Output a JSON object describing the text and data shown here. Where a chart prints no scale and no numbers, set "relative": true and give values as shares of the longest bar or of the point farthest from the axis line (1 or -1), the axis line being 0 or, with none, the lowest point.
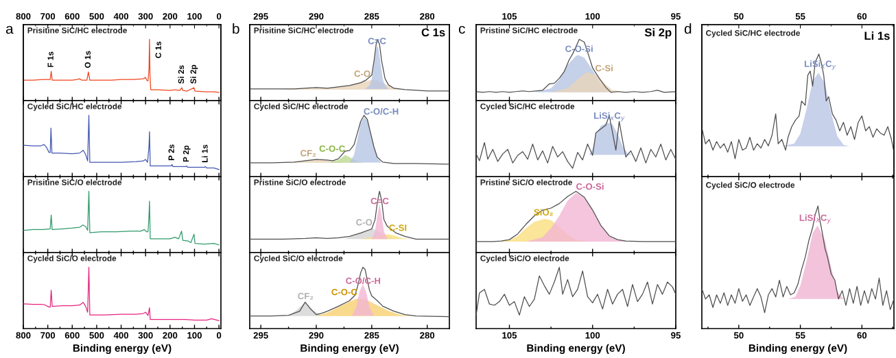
{
  "chart_data": [
    {
      "type": "line",
      "relative": true,
      "title": "Prisitine SiC/HC electrode",
      "xlim": [
        800,
        -8
      ],
      "xticks": [
        800,
        700,
        600,
        500,
        400,
        300,
        200,
        100,
        0
      ],
      "x2lim": [
        800,
        -8
      ],
      "x2ticks": [
        800,
        700,
        600,
        500,
        400,
        300,
        200,
        100,
        0
      ],
      "tick_labels": false,
      "annotations": [
        "a",
        {
          "text": "F 1s",
          "x": 686,
          "y": 0.478
        },
        {
          "text": "O 1s",
          "x": 534,
          "y": 0.467
        },
        {
          "text": "C 1s",
          "x": 284,
          "y": 1
        },
        {
          "text": "Si 2s",
          "x": 152,
          "y": 0.211
        },
        {
          "text": "Si 2p",
          "x": 102,
          "y": 0.211
        }
      ],
      "series": [
        {
          "color": "#f0441c",
          "x": [
            800,
            760,
            720,
            700,
            690,
            686,
            682,
            650,
            600,
            580,
            570,
            560,
            540,
            534,
            528,
            500,
            440,
            400,
            350,
            310,
            300,
            295,
            290,
            286,
            284,
            282,
            279,
            250,
            200,
            180,
            160,
            152,
            148,
            130,
            102,
            98,
            50,
            20,
            0
          ],
          "values": [
            0.333,
            0.333,
            0.344,
            0.344,
            0.344,
            0.478,
            0.333,
            0.333,
            0.333,
            0.344,
            0.356,
            0.333,
            0.333,
            0.467,
            0.333,
            0.333,
            0.333,
            0.344,
            0.344,
            0.356,
            0.378,
            0.333,
            0.322,
            0.522,
            1,
            0.411,
            0.178,
            0.178,
            0.167,
            0.178,
            0.167,
            0.211,
            0.167,
            0.156,
            0.211,
            0.156,
            0.144,
            0.144,
            0.133
          ]
        }
      ]
    },
    {
      "type": "line",
      "relative": true,
      "title": "Cycled SiC/HC electrode",
      "xlim": [
        800,
        -8
      ],
      "xticks": [
        800,
        700,
        600,
        500,
        400,
        300,
        200,
        100,
        0
      ],
      "tick_labels": false,
      "annotations": [
        {
          "text": "P 2s",
          "x": 192,
          "y": 0.198
        },
        {
          "text": "P 2p",
          "x": 132,
          "y": 0.174
        },
        {
          "text": "Li 1s",
          "x": 55,
          "y": 0.163
        }
      ],
      "series": [
        {
          "color": "#4257b2",
          "x": [
            800,
            760,
            730,
            715,
            705,
            695,
            690,
            687,
            683,
            650,
            600,
            570,
            555,
            545,
            537,
            532,
            528,
            500,
            400,
            340,
            310,
            300,
            292,
            286,
            284,
            281,
            250,
            195,
            192,
            188,
            135,
            132,
            128,
            60,
            55,
            50,
            20,
            0
          ],
          "values": [
            0.512,
            0.5,
            0.5,
            0.523,
            0.477,
            0.395,
            0.395,
            0.791,
            0.384,
            0.384,
            0.372,
            0.384,
            0.43,
            0.36,
            0.256,
            1,
            0.233,
            0.233,
            0.233,
            0.244,
            0.256,
            0.279,
            0.233,
            0.5,
            0.733,
            0.174,
            0.174,
            0.174,
            0.198,
            0.163,
            0.163,
            0.174,
            0.151,
            0.151,
            0.163,
            0.14,
            0.14,
            0.116
          ]
        }
      ]
    },
    {
      "type": "line",
      "relative": true,
      "title": "Prisitine SiC/O electrode",
      "xlim": [
        800,
        -8
      ],
      "xticks": [
        800,
        700,
        600,
        500,
        400,
        300,
        200,
        100,
        0
      ],
      "tick_labels": false,
      "series": [
        {
          "color": "#2e9a6b",
          "x": [
            800,
            760,
            720,
            690,
            686,
            682,
            640,
            600,
            570,
            556,
            545,
            537,
            532,
            528,
            480,
            420,
            360,
            320,
            305,
            295,
            290,
            286,
            284,
            281,
            240,
            200,
            180,
            165,
            153,
            148,
            125,
            115,
            102,
            98,
            60,
            20,
            0
          ],
          "values": [
            0.363,
            0.375,
            0.375,
            0.388,
            0.613,
            0.375,
            0.388,
            0.4,
            0.413,
            0.45,
            0.425,
            0.363,
            1,
            0.325,
            0.338,
            0.338,
            0.35,
            0.35,
            0.375,
            0.338,
            0.338,
            0.613,
            0.838,
            0.225,
            0.225,
            0.225,
            0.25,
            0.225,
            0.35,
            0.2,
            0.188,
            0.163,
            0.3,
            0.15,
            0.138,
            0.15,
            0.125
          ]
        }
      ]
    },
    {
      "type": "line",
      "relative": true,
      "title": "Cycled SiC/O electrode",
      "xlim": [
        800,
        -8
      ],
      "xticks": [
        800,
        700,
        600,
        500,
        400,
        300,
        200,
        100,
        0
      ],
      "tick_labels": "x",
      "xlabel": "Binding energy (eV)",
      "series": [
        {
          "color": "#e4237f",
          "x": [
            800,
            760,
            720,
            710,
            695,
            690,
            686,
            682,
            640,
            600,
            570,
            555,
            545,
            537,
            532,
            528,
            470,
            400,
            340,
            310,
            300,
            290,
            286,
            284,
            281,
            240,
            200,
            140,
            100,
            50,
            30,
            0
          ],
          "values": [
            0.404,
            0.394,
            0.394,
            0.383,
            0.351,
            0.351,
            0.628,
            0.362,
            0.372,
            0.372,
            0.383,
            0.426,
            0.362,
            0.266,
            1,
            0.223,
            0.223,
            0.234,
            0.234,
            0.245,
            0.266,
            0.213,
            0.298,
            0.34,
            0.149,
            0.149,
            0.149,
            0.149,
            0.138,
            0.138,
            0.16,
            0.128
          ]
        }
      ]
    },
    {
      "type": "line",
      "relative": true,
      "title": "Prisitine SiC/HC electrode",
      "subtitle": "C 1s",
      "xlim": [
        296,
        278
      ],
      "xticks": [
        295,
        290,
        285,
        280
      ],
      "x2lim": [
        296,
        278
      ],
      "x2ticks": [
        295,
        290,
        285,
        280
      ],
      "tick_labels": false,
      "annotations": [
        "b"
      ],
      "series": [
        {
          "type": "area",
          "name": "C-O",
          "color": "#e9d5b9",
          "x": [
            293,
            290,
            288,
            287,
            286,
            285,
            284.5,
            284,
            283.5,
            283,
            282
          ],
          "values": [
            0.191,
            0.2,
            0.22,
            0.25,
            0.3,
            0.337,
            0.33,
            0.29,
            0.24,
            0.2,
            0.18
          ]
        },
        {
          "type": "area",
          "name": "C=C",
          "color": "#b7c4e4",
          "x": [
            285.6,
            285.2,
            285,
            284.8,
            284.6,
            284.5,
            284.4,
            284.2,
            284,
            283.8,
            283.5
          ],
          "values": [
            0.19,
            0.25,
            0.35,
            0.6,
            0.85,
            0.888,
            0.85,
            0.6,
            0.35,
            0.25,
            0.19
          ]
        },
        {
          "color": "#4d4d4d",
          "x": [
            296,
            294,
            292,
            291,
            290,
            289,
            288,
            287,
            286,
            285.5,
            285,
            284.8,
            284.6,
            284.5,
            284.3,
            284.1,
            283.8,
            283.5,
            283,
            282,
            281,
            280,
            278
          ],
          "values": [
            0.191,
            0.191,
            0.191,
            0.202,
            0.213,
            0.202,
            0.225,
            0.247,
            0.292,
            0.337,
            0.416,
            0.64,
            0.921,
            1,
            0.921,
            0.64,
            0.36,
            0.258,
            0.202,
            0.18,
            0.169,
            0.157,
            0.157
          ]
        }
      ]
    },
    {
      "type": "line",
      "relative": true,
      "title": "Cycled SiC/HC electrode",
      "xlim": [
        296,
        278
      ],
      "xticks": [
        295,
        290,
        285,
        280
      ],
      "tick_labels": false,
      "series": [
        {
          "type": "area",
          "name": "CF₂",
          "color": "#e9d5b9",
          "x": [
            293,
            291.5,
            290,
            288.5,
            287.5,
            286.5
          ],
          "values": [
            0.225,
            0.25,
            0.277,
            0.25,
            0.23,
            0.225
          ]
        },
        {
          "type": "area",
          "name": "C-O-C",
          "color": "#bcd98f",
          "x": [
            292,
            288.8,
            288,
            287.4,
            286.8,
            286.2,
            285.8
          ],
          "values": [
            0.225,
            0.23,
            0.27,
            0.352,
            0.3,
            0.24,
            0.225
          ]
        },
        {
          "type": "area",
          "name": "C-O/C-H",
          "color": "#b7c4e4",
          "x": [
            287,
            286.6,
            286.3,
            286,
            285.7,
            285.4,
            285.1,
            284.8,
            284.5,
            284.1
          ],
          "values": [
            0.23,
            0.35,
            0.6,
            0.87,
            0.97,
            0.92,
            0.72,
            0.48,
            0.3,
            0.23
          ]
        },
        {
          "color": "#4d4d4d",
          "x": [
            296,
            294,
            292,
            291,
            290,
            289,
            288.5,
            288,
            287.4,
            287,
            286.6,
            286.3,
            286,
            285.7,
            285.4,
            285.1,
            284.8,
            284.5,
            284,
            283,
            281,
            278
          ],
          "values": [
            0.225,
            0.225,
            0.236,
            0.258,
            0.281,
            0.27,
            0.258,
            0.292,
            0.416,
            0.427,
            0.517,
            0.708,
            0.899,
            1,
            0.933,
            0.708,
            0.483,
            0.315,
            0.236,
            0.213,
            0.213,
            0.202
          ]
        }
      ]
    },
    {
      "type": "line",
      "relative": true,
      "title": "Pristine SiC/O electrode",
      "xlim": [
        296,
        278
      ],
      "xticks": [
        295,
        290,
        285,
        280
      ],
      "tick_labels": false,
      "series": [
        {
          "type": "area",
          "name": "C-O",
          "color": "#d3d3d3",
          "x": [
            287.5,
            286.5,
            285.5,
            285,
            284.5,
            284,
            283,
            282.5
          ],
          "values": [
            0.22,
            0.28,
            0.37,
            0.392,
            0.36,
            0.3,
            0.23,
            0.22
          ]
        },
        {
          "type": "area",
          "name": "C-SI",
          "color": "#f9df7e",
          "x": [
            286,
            285,
            284,
            283.5,
            283,
            282.3,
            281.5
          ],
          "values": [
            0.22,
            0.25,
            0.29,
            0.3,
            0.28,
            0.24,
            0.22
          ]
        },
        {
          "type": "area",
          "name": "C=C",
          "color": "#f2b5d4",
          "x": [
            285,
            284.7,
            284.5,
            284.3,
            284.1,
            283.9,
            283.6
          ],
          "values": [
            0.22,
            0.35,
            0.6,
            0.795,
            0.6,
            0.35,
            0.22
          ]
        },
        {
          "color": "#4d4d4d",
          "x": [
            296,
            293,
            291,
            290,
            289,
            288,
            287,
            286,
            285.5,
            285,
            284.7,
            284.5,
            284.3,
            284.1,
            283.9,
            283.6,
            283.2,
            282.8,
            282,
            281,
            278
          ],
          "values": [
            0.22,
            0.22,
            0.231,
            0.242,
            0.231,
            0.242,
            0.264,
            0.319,
            0.352,
            0.385,
            0.538,
            0.813,
            1,
            0.846,
            0.538,
            0.429,
            0.374,
            0.319,
            0.264,
            0.22,
            0.22
          ]
        }
      ]
    },
    {
      "type": "line",
      "relative": true,
      "title": "Cycled SiC/O electrode",
      "xlim": [
        296,
        278
      ],
      "xticks": [
        295,
        290,
        285,
        280
      ],
      "tick_labels": "x",
      "xlabel": "Binding energy (eV)",
      "series": [
        {
          "type": "area",
          "name": "CF₂",
          "color": "#d3d3d3",
          "x": [
            292.5,
            291.8,
            291,
            290.3,
            289.5
          ],
          "values": [
            0.205,
            0.3,
            0.43,
            0.3,
            0.205
          ]
        },
        {
          "type": "area",
          "name": "C-O-C",
          "color": "#f7cf6f",
          "x": [
            290,
            289,
            288,
            287,
            286.3,
            285.5,
            284.5,
            283.5,
            282.5,
            281.5
          ],
          "values": [
            0.205,
            0.26,
            0.35,
            0.44,
            0.49,
            0.47,
            0.38,
            0.29,
            0.23,
            0.205
          ]
        },
        {
          "type": "area",
          "name": "C-O/C-H",
          "color": "#f2b5d4",
          "x": [
            286.8,
            286.4,
            286.1,
            285.8,
            285.5,
            285.2,
            284.8
          ],
          "values": [
            0.21,
            0.35,
            0.6,
            0.727,
            0.6,
            0.35,
            0.21
          ]
        },
        {
          "color": "#4d4d4d",
          "x": [
            296,
            294,
            292.5,
            291.5,
            291,
            290.5,
            290,
            289.5,
            289,
            288,
            287,
            286.5,
            286.2,
            286,
            285.8,
            285.6,
            285.4,
            285.2,
            285,
            284.5,
            284,
            283,
            282,
            281,
            278
          ],
          "values": [
            0.205,
            0.205,
            0.216,
            0.284,
            0.432,
            0.318,
            0.227,
            0.25,
            0.284,
            0.364,
            0.455,
            0.545,
            0.739,
            0.909,
            1,
            0.966,
            0.795,
            0.625,
            0.534,
            0.455,
            0.364,
            0.284,
            0.227,
            0.205,
            0.193
          ]
        }
      ]
    },
    {
      "type": "line",
      "relative": true,
      "title": "Pristine SiC/HC electrode",
      "subtitle": "Si 2p",
      "xlim": [
        107,
        95
      ],
      "xticks": [
        105,
        100,
        95
      ],
      "x2lim": [
        107,
        95
      ],
      "x2ticks": [
        105,
        100,
        95
      ],
      "tick_labels": false,
      "annotations": [
        "c"
      ],
      "series": [
        {
          "type": "area",
          "name": "C-O-Si",
          "color": "#b7c4e4",
          "x": [
            103.5,
            102.5,
            102,
            101.5,
            101,
            100.86,
            100.5,
            100,
            99.5,
            99,
            98.5
          ],
          "values": [
            0.136,
            0.2,
            0.34,
            0.58,
            0.73,
            0.742,
            0.7,
            0.5,
            0.28,
            0.15,
            0.136
          ]
        },
        {
          "type": "area",
          "name": "C-Si",
          "color": "#e9d5b9",
          "x": [
            102.5,
            101.5,
            101,
            100.35,
            99.8,
            99.3,
            98.8,
            98
          ],
          "values": [
            0.136,
            0.2,
            0.33,
            0.466,
            0.42,
            0.28,
            0.17,
            0.136
          ]
        },
        {
          "color": "#4d4d4d",
          "x": [
            107,
            106.6,
            106.2,
            105.8,
            105.4,
            105,
            104.6,
            104.2,
            103.8,
            103.4,
            103,
            102.6,
            102.3,
            102,
            101.7,
            101.4,
            101.2,
            100.8,
            100.5,
            100.3,
            100,
            99.6,
            99.2,
            98.9,
            98.5,
            98,
            97.5,
            97,
            96.5,
            96.1,
            95.7,
            95
          ],
          "values": [
            0.148,
            0.136,
            0.148,
            0.136,
            0.148,
            0.136,
            0.148,
            0.159,
            0.148,
            0.159,
            0.17,
            0.273,
            0.284,
            0.364,
            0.477,
            0.67,
            0.761,
            1,
            0.955,
            0.795,
            0.534,
            0.364,
            0.216,
            0.136,
            0.148,
            0.136,
            0.148,
            0.136,
            0.148,
            0.17,
            0.136,
            0.148
          ]
        }
      ]
    },
    {
      "type": "line",
      "relative": true,
      "title": "Cycled SiC/HC electrode",
      "xlim": [
        107,
        95
      ],
      "xticks": [
        105,
        100,
        95
      ],
      "tick_labels": false,
      "series": [
        {
          "type": "area",
          "name": "LiSi$_{x}$C$_{y}$",
          "color": "#b7c4e4",
          "x": [
            107,
            100.2,
            100,
            99.8,
            99.5,
            99.2,
            99,
            98.8,
            98.5,
            98.2,
            97.9,
            97.6,
            95
          ],
          "values": [
            0.354,
            0.354,
            0.45,
            0.7,
            0.83,
            0.87,
            0.877,
            0.85,
            0.7,
            0.5,
            0.38,
            0.354,
            0.354
          ]
        },
        {
          "color": "#4d4d4d",
          "x": [
            107,
            106.8,
            106.5,
            106.3,
            106,
            105.7,
            105.4,
            105.1,
            104.8,
            104.5,
            104.2,
            103.9,
            103.6,
            103.3,
            103,
            102.7,
            102.4,
            102.1,
            101.8,
            101.5,
            101.2,
            100.9,
            100.6,
            100.3,
            100,
            99.8,
            99.5,
            99.2,
            99,
            98.8,
            98.6,
            98.4,
            98.2,
            98,
            97.7,
            97.4,
            97.1,
            96.8,
            96.5,
            96.2,
            95.9,
            95.6,
            95.3,
            95
          ],
          "values": [
            0.37,
            0.259,
            0.556,
            0.284,
            0.444,
            0.247,
            0.37,
            0.444,
            0.222,
            0.346,
            0.407,
            0.284,
            0.531,
            0.272,
            0.42,
            0.222,
            0.494,
            0.321,
            0.407,
            0.247,
            0.136,
            0.395,
            0.272,
            0.531,
            0.346,
            0.716,
            0.778,
            0.84,
            1,
            0.716,
            0.432,
            0.901,
            0.593,
            0.321,
            0.42,
            0.247,
            0.469,
            0.222,
            0.444,
            0.321,
            0.531,
            0.272,
            0.444,
            0.284
          ]
        }
      ]
    },
    {
      "type": "line",
      "relative": true,
      "title": "Pristine SiC/O electrode",
      "xlim": [
        107,
        95
      ],
      "xticks": [
        105,
        100,
        95
      ],
      "tick_labels": false,
      "series": [
        {
          "type": "area",
          "name": "SiO₂",
          "color": "#f9df7e",
          "x": [
            106,
            105,
            104.5,
            104,
            103.5,
            102.9,
            102.5,
            102,
            101.5,
            101,
            100,
            99
          ],
          "values": [
            0.179,
            0.2,
            0.27,
            0.4,
            0.5,
            0.551,
            0.53,
            0.42,
            0.3,
            0.21,
            0.18,
            0.179
          ]
        },
        {
          "type": "area",
          "name": "C-O-Si",
          "color": "#f2b5d4",
          "x": [
            104,
            103,
            102.5,
            102,
            101.5,
            101,
            100.5,
            100,
            99.5,
            99,
            98.5,
            97.5
          ],
          "values": [
            0.179,
            0.25,
            0.4,
            0.6,
            0.85,
            0.972,
            0.9,
            0.69,
            0.44,
            0.27,
            0.2,
            0.179
          ]
        },
        {
          "color": "#4d4d4d",
          "x": [
            107,
            106,
            105.5,
            105,
            104.5,
            104,
            103.5,
            103,
            102.5,
            102,
            101.5,
            101,
            100.5,
            100,
            99.5,
            99,
            98.5,
            98,
            97,
            96,
            95
          ],
          "values": [
            0.179,
            0.179,
            0.189,
            0.211,
            0.305,
            0.463,
            0.6,
            0.695,
            0.726,
            0.8,
            0.916,
            1,
            0.905,
            0.695,
            0.442,
            0.274,
            0.211,
            0.189,
            0.179,
            0.179,
            0.179
          ]
        }
      ]
    },
    {
      "type": "line",
      "relative": true,
      "title": "Cycled SiC/O electrode",
      "xlim": [
        107,
        95
      ],
      "xticks": [
        105,
        100,
        95
      ],
      "tick_labels": "x",
      "xlabel": "Binding energy (eV)",
      "series": [
        {
          "color": "#4d4d4d",
          "x": [
            107,
            106.8,
            106.5,
            106.2,
            105.9,
            105.6,
            105.3,
            105,
            104.7,
            104.4,
            104.1,
            103.8,
            103.5,
            103.2,
            102.9,
            102.6,
            102.3,
            102,
            101.8,
            101.5,
            101.2,
            100.9,
            100.6,
            100.3,
            100,
            99.7,
            99.4,
            99.1,
            98.8,
            98.5,
            98.2,
            97.9,
            97.6,
            97.3,
            97,
            96.7,
            96.4,
            96.1,
            95.8,
            95.5,
            95.2,
            95
          ],
          "values": [
            0.22,
            0.58,
            0.64,
            0.4,
            0.38,
            0.44,
            0.56,
            0.38,
            0.44,
            0.22,
            0.52,
            0.36,
            0.48,
            0.86,
            0.7,
            0.56,
            0.76,
            1,
            0.56,
            0.8,
            0.52,
            0.64,
            0.94,
            0.52,
            0.42,
            0.56,
            0.32,
            0.64,
            0.4,
            0.56,
            0.64,
            0.36,
            0.72,
            0.44,
            0.56,
            0.76,
            0.4,
            0.72,
            0.56,
            0.76,
            0.68,
            0.56
          ]
        }
      ]
    },
    {
      "type": "line",
      "relative": true,
      "title": "Cycled SiC/HC electrode",
      "subtitle": "Li 1s",
      "xlim": [
        47,
        62.6
      ],
      "xticks": [
        50,
        55,
        60
      ],
      "x2lim": [
        47,
        62.6
      ],
      "x2ticks": [
        50,
        55,
        60
      ],
      "tick_labels": false,
      "annotations": [
        "d"
      ],
      "series": [
        {
          "type": "area",
          "name": "LiSi$_{X}$C$_{y}$",
          "color": "#b9c6e5",
          "x": [
            47,
            53.5,
            54.5,
            55,
            55.5,
            56,
            56.47,
            57,
            57.5,
            58,
            58.5,
            59,
            62.6
          ],
          "values": [
            0.247,
            0.247,
            0.27,
            0.35,
            0.55,
            0.78,
            0.847,
            0.76,
            0.52,
            0.33,
            0.26,
            0.247,
            0.247
          ]
        },
        {
          "color": "#4d4d4d",
          "x": [
            47,
            47.3,
            47.6,
            47.9,
            48.2,
            48.5,
            48.8,
            49.1,
            49.4,
            49.7,
            50,
            50.3,
            50.6,
            50.9,
            51.2,
            51.5,
            51.8,
            52.1,
            52.4,
            52.7,
            53,
            53.2,
            53.5,
            53.8,
            54,
            54.3,
            54.6,
            54.9,
            55.1,
            55.4,
            55.6,
            55.8,
            56,
            56.2,
            56.5,
            56.7,
            56.9,
            57.1,
            57.3,
            57.6,
            57.9,
            58.2,
            58.5,
            58.8,
            59.1,
            59.4,
            59.7,
            60,
            60.3,
            60.6,
            60.9,
            61.2,
            61.5,
            61.8,
            62.1,
            62.4,
            62.6
          ],
          "values": [
            0.399,
            0.268,
            0.303,
            0.216,
            0.286,
            0.233,
            0.268,
            0.199,
            0.286,
            0.146,
            0.303,
            0.216,
            0.233,
            0.321,
            0.216,
            0.268,
            0.233,
            0.303,
            0.251,
            0.338,
            0.512,
            0.268,
            0.303,
            0.216,
            0.321,
            0.408,
            0.46,
            0.495,
            0.617,
            0.582,
            0.826,
            0.861,
            0.739,
            0.93,
            1,
            0.93,
            0.826,
            0.617,
            0.652,
            0.512,
            0.46,
            0.373,
            0.443,
            0.338,
            0.408,
            0.303,
            0.443,
            0.495,
            0.373,
            0.408,
            0.321,
            0.39,
            0.355,
            0.338,
            0.408,
            0.303,
            0.199
          ]
        }
      ]
    },
    {
      "type": "line",
      "relative": true,
      "title": "Cycled SiC/O electrode",
      "xlim": [
        47,
        62.6
      ],
      "xticks": [
        50,
        55,
        60
      ],
      "tick_labels": "x",
      "xlabel": "Binding energy (eV)",
      "series": [
        {
          "type": "area",
          "name": "LiSi$_{X}$C$_{y}$",
          "color": "#f0b4d2",
          "x": [
            47,
            54,
            54.6,
            55,
            55.5,
            56,
            56.4,
            57,
            57.5,
            58,
            58.5,
            59,
            62.6
          ],
          "values": [
            0.241,
            0.241,
            0.26,
            0.35,
            0.55,
            0.78,
            0.842,
            0.72,
            0.5,
            0.3,
            0.245,
            0.241,
            0.241
          ]
        },
        {
          "color": "#4d4d4d",
          "x": [
            47,
            47.3,
            47.6,
            47.9,
            48.2,
            48.5,
            48.8,
            49.1,
            49.4,
            49.7,
            50,
            50.3,
            50.6,
            50.9,
            51.2,
            51.5,
            51.8,
            52.1,
            52.4,
            52.7,
            53,
            53.3,
            53.6,
            53.9,
            54.2,
            54.5,
            54.8,
            55.1,
            55.4,
            55.7,
            56,
            56.2,
            56.43,
            56.6,
            56.8,
            57,
            57.2,
            57.5,
            57.8,
            58.1,
            58.4,
            58.7,
            59,
            59.3,
            59.6,
            59.9,
            60.2,
            60.5,
            60.8,
            61.1,
            61.4,
            61.7,
            62,
            62.3,
            62.6
          ],
          "values": [
            0.326,
            0.241,
            0.275,
            0.172,
            0.275,
            0.206,
            0.292,
            0.189,
            0.275,
            0.206,
            0.326,
            0.223,
            0.275,
            0.189,
            0.258,
            0.326,
            0.258,
            0.129,
            0.275,
            0.326,
            0.258,
            0.395,
            0.258,
            0.344,
            0.275,
            0.292,
            0.361,
            0.481,
            0.584,
            0.722,
            0.825,
            0.928,
            1,
            0.876,
            0.773,
            0.653,
            0.584,
            0.447,
            0.395,
            0.241,
            0.309,
            0.189,
            0.326,
            0.206,
            0.344,
            0.189,
            0.309,
            0.206,
            0.326,
            0.241,
            0.412,
            0.189,
            0.309,
            0.155,
            0.241
          ]
        }
      ]
    }
  ]
}
